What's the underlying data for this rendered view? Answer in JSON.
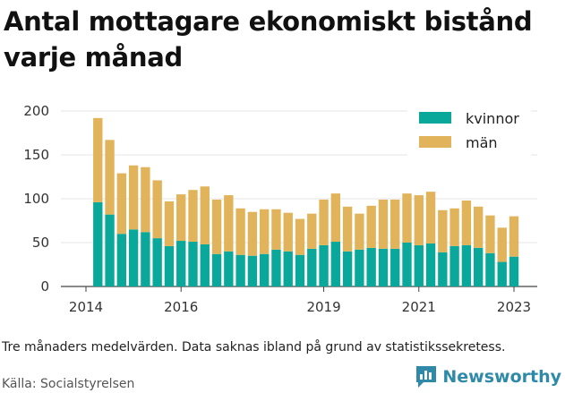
{
  "title": "Antal mottagare ekonomiskt bistånd varje månad",
  "note": "Tre månaders medelvärden. Data saknas ibland på grund av statistikssekretess.",
  "source": "Källa: Socialstyrelsen",
  "brand": "Newsworthy",
  "colors": {
    "kvinnor": "#0aa89a",
    "man": "#e1b35a",
    "brand": "#2e8aa8"
  },
  "chart_data": {
    "type": "bar",
    "stacked": true,
    "title": "Antal mottagare ekonomiskt bistånd varje månad",
    "ylim": [
      0,
      200
    ],
    "yticks": [
      0,
      50,
      100,
      150,
      200
    ],
    "xticks": [
      {
        "label": "2014",
        "x": 2014.0
      },
      {
        "label": "2016",
        "x": 2016.0
      },
      {
        "label": "2019",
        "x": 2019.0
      },
      {
        "label": "2021",
        "x": 2021.0
      },
      {
        "label": "2023",
        "x": 2023.0
      }
    ],
    "grid": true,
    "legend_position": "top-right",
    "x": [
      2014.25,
      2014.5,
      2014.75,
      2015.0,
      2015.25,
      2015.5,
      2015.75,
      2016.0,
      2016.25,
      2016.5,
      2016.75,
      2017.0,
      2017.25,
      2017.5,
      2017.75,
      2018.0,
      2018.25,
      2018.5,
      2018.75,
      2019.0,
      2019.25,
      2019.5,
      2019.75,
      2020.0,
      2020.25,
      2020.5,
      2020.75,
      2021.0,
      2021.25,
      2021.5,
      2021.75,
      2022.0,
      2022.25,
      2022.5,
      2022.75,
      2023.0
    ],
    "series": [
      {
        "name": "kvinnor",
        "color": "#0aa89a",
        "values": [
          96,
          82,
          60,
          65,
          62,
          55,
          46,
          52,
          51,
          48,
          37,
          40,
          36,
          35,
          37,
          42,
          40,
          36,
          43,
          47,
          51,
          40,
          42,
          44,
          43,
          43,
          50,
          47,
          49,
          39,
          46,
          47,
          44,
          38,
          28,
          34
        ]
      },
      {
        "name": "män",
        "color": "#e1b35a",
        "values": [
          96,
          85,
          69,
          73,
          74,
          66,
          51,
          53,
          59,
          66,
          62,
          64,
          53,
          50,
          51,
          46,
          44,
          41,
          40,
          52,
          55,
          51,
          41,
          48,
          56,
          56,
          56,
          57,
          59,
          48,
          43,
          51,
          47,
          43,
          39,
          46
        ]
      }
    ]
  }
}
